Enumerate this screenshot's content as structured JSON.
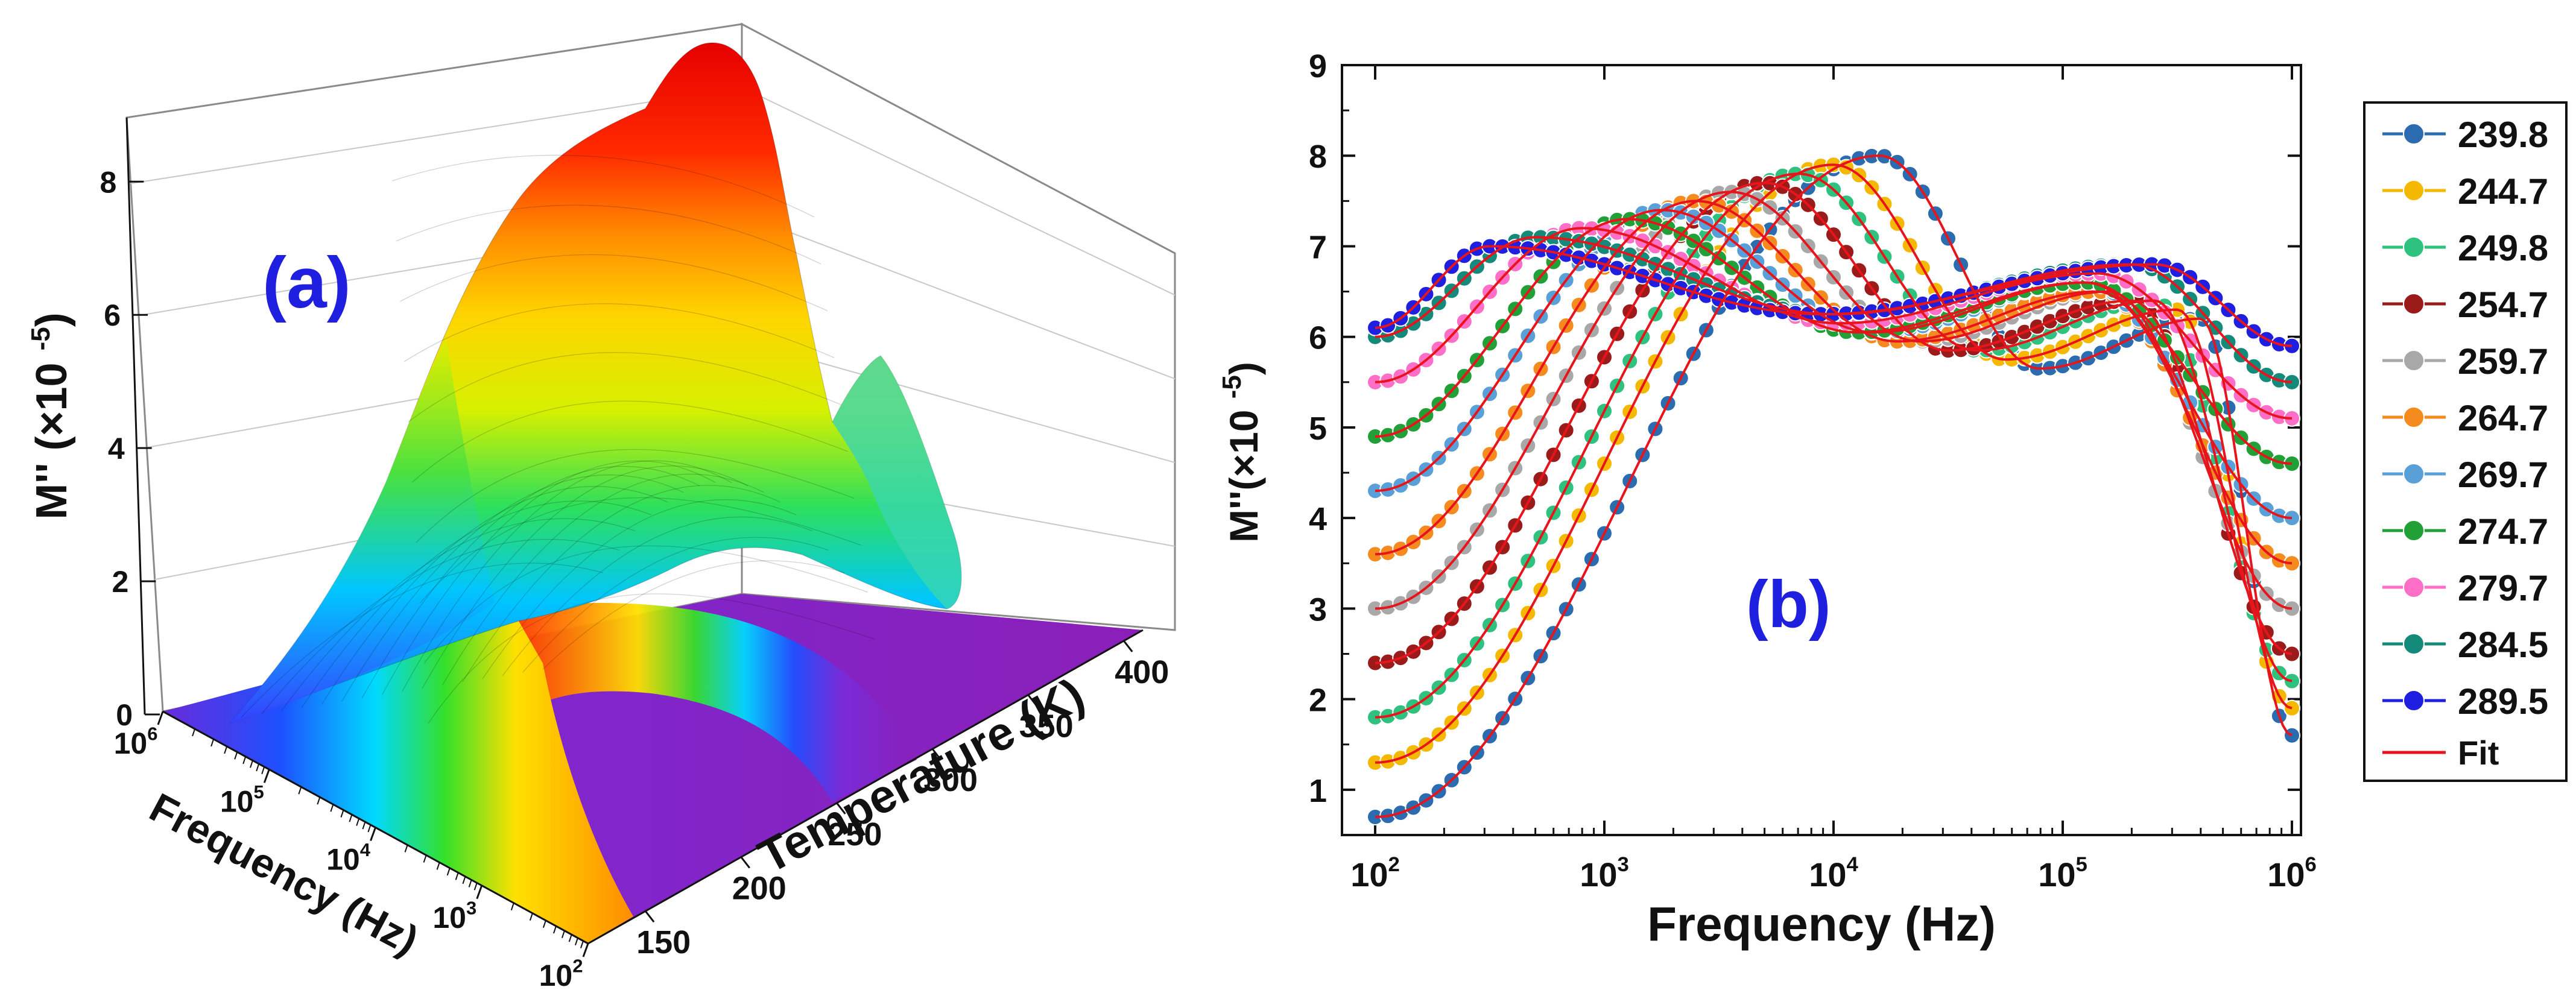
{
  "figure": {
    "panel_a_label": "(a)",
    "panel_b_label": "(b)"
  },
  "colors": {
    "axis": "#111111",
    "panel_label": "#1f1fe0",
    "fit_line": "#e8141c"
  },
  "chart_data": [
    {
      "type": "surface3d",
      "panel": "(a)",
      "zlabel": "M'' (×10⁻⁵)",
      "xlabel": "Frequency (Hz)",
      "ylabel": "Temperature (K)",
      "z_ticks": [
        "0",
        "2",
        "4",
        "6",
        "8"
      ],
      "z_range": [
        0,
        9
      ],
      "freq_ticks": [
        {
          "base": "10",
          "exp": "2"
        },
        {
          "base": "10",
          "exp": "3"
        },
        {
          "base": "10",
          "exp": "4"
        },
        {
          "base": "10",
          "exp": "5"
        },
        {
          "base": "10",
          "exp": "6"
        }
      ],
      "temp_ticks": [
        "150",
        "200",
        "250",
        "300",
        "350",
        "400"
      ],
      "temp_range": [
        120,
        410
      ],
      "freq_range_log": [
        2,
        6
      ],
      "peak": {
        "temperature": 200,
        "log_frequency": 4,
        "value": 9.0
      },
      "colormap": "rainbow (violet → red)"
    },
    {
      "type": "scatter+line",
      "panel": "(b)",
      "xlabel": "Frequency (Hz)",
      "ylabel": "M''(×10⁻⁵)",
      "x_scale": "log",
      "xlim": [
        100,
        1000000
      ],
      "ylim": [
        0.5,
        9
      ],
      "y_ticks": [
        "1",
        "2",
        "3",
        "4",
        "5",
        "6",
        "7",
        "8",
        "9"
      ],
      "x_ticks": [
        {
          "base": "10",
          "exp": "2"
        },
        {
          "base": "10",
          "exp": "3"
        },
        {
          "base": "10",
          "exp": "4"
        },
        {
          "base": "10",
          "exp": "5"
        },
        {
          "base": "10",
          "exp": "6"
        }
      ],
      "fit_label": "Fit",
      "series": [
        {
          "name": "239.8",
          "color": "#2b6cb0",
          "y_start": 0.7,
          "y_end": 1.6,
          "peak1_log_f": 4.2,
          "peak1_height": 8.0,
          "peak2_log_f": 5.6,
          "peak2_height": 6.2
        },
        {
          "name": "244.7",
          "color": "#f5b800",
          "y_start": 1.3,
          "y_end": 1.9,
          "peak1_log_f": 4.0,
          "peak1_height": 7.9,
          "peak2_log_f": 5.5,
          "peak2_height": 6.3
        },
        {
          "name": "249.8",
          "color": "#2ec27e",
          "y_start": 1.8,
          "y_end": 2.2,
          "peak1_log_f": 3.85,
          "peak1_height": 7.8,
          "peak2_log_f": 5.4,
          "peak2_height": 6.4
        },
        {
          "name": "254.7",
          "color": "#9b1b1b",
          "y_start": 2.4,
          "y_end": 2.5,
          "peak1_log_f": 3.7,
          "peak1_height": 7.7,
          "peak2_log_f": 5.3,
          "peak2_height": 6.4
        },
        {
          "name": "259.7",
          "color": "#a8a8a8",
          "y_start": 3.0,
          "y_end": 3.0,
          "peak1_log_f": 3.55,
          "peak1_height": 7.6,
          "peak2_log_f": 5.2,
          "peak2_height": 6.5
        },
        {
          "name": "264.7",
          "color": "#f58a1f",
          "y_start": 3.6,
          "y_end": 3.5,
          "peak1_log_f": 3.4,
          "peak1_height": 7.5,
          "peak2_log_f": 5.15,
          "peak2_height": 6.5
        },
        {
          "name": "269.7",
          "color": "#5aa0d8",
          "y_start": 4.3,
          "y_end": 4.0,
          "peak1_log_f": 3.25,
          "peak1_height": 7.4,
          "peak2_log_f": 5.1,
          "peak2_height": 6.6
        },
        {
          "name": "274.7",
          "color": "#21a038",
          "y_start": 4.9,
          "y_end": 4.6,
          "peak1_log_f": 3.1,
          "peak1_height": 7.3,
          "peak2_log_f": 5.1,
          "peak2_height": 6.6
        },
        {
          "name": "279.7",
          "color": "#ff6ec7",
          "y_start": 5.5,
          "y_end": 5.1,
          "peak1_log_f": 2.9,
          "peak1_height": 7.2,
          "peak2_log_f": 5.15,
          "peak2_height": 6.7
        },
        {
          "name": "284.5",
          "color": "#138a7a",
          "y_start": 6.0,
          "y_end": 5.5,
          "peak1_log_f": 2.7,
          "peak1_height": 7.1,
          "peak2_log_f": 5.3,
          "peak2_height": 6.8
        },
        {
          "name": "289.5",
          "color": "#1f1fe0",
          "y_start": 6.1,
          "y_end": 5.9,
          "peak1_log_f": 2.5,
          "peak1_height": 7.0,
          "peak2_log_f": 5.4,
          "peak2_height": 6.8
        }
      ]
    }
  ]
}
